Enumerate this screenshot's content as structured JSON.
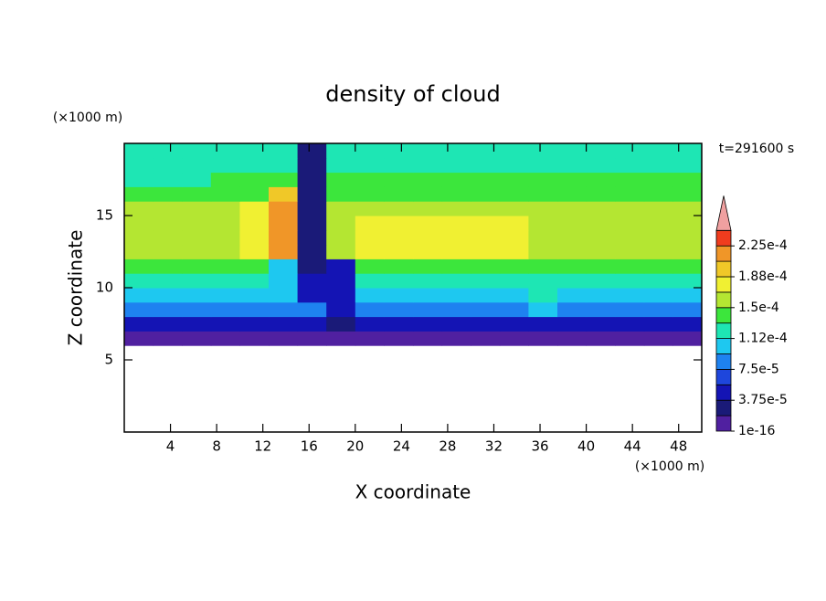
{
  "chart_data": {
    "type": "contour",
    "title": "density of cloud",
    "xlabel": "X coordinate",
    "ylabel": "Z coordinate",
    "x_unit": "(×1000 m)",
    "y_unit": "(×1000 m)",
    "annotation": "t=291600 s",
    "xlim": [
      0,
      50
    ],
    "ylim": [
      0,
      20
    ],
    "xticks": [
      4,
      8,
      12,
      16,
      20,
      24,
      28,
      32,
      36,
      40,
      44,
      48
    ],
    "yticks": [
      5,
      10,
      15
    ],
    "xbins": [
      0,
      2.5,
      5,
      7.5,
      10,
      12.5,
      15,
      17.5,
      20,
      22.5,
      25,
      27.5,
      30,
      32.5,
      35,
      37.5,
      40,
      42.5,
      45,
      47.5,
      50
    ],
    "ybins": [
      6,
      7,
      8,
      9,
      10,
      11,
      12,
      13,
      14,
      15,
      16,
      17,
      18,
      19,
      20
    ],
    "values": [
      [
        1e-05,
        1e-05,
        1e-05,
        1e-05,
        1e-05,
        1e-05,
        1e-05,
        1e-05,
        1e-05,
        1e-05,
        1e-05,
        1e-05,
        1e-05,
        1e-05,
        1e-05,
        1e-05,
        1e-05,
        1e-05,
        1e-05,
        1e-05
      ],
      [
        4e-05,
        4e-05,
        4e-05,
        4e-05,
        4e-05,
        4e-05,
        4e-05,
        3e-05,
        4e-05,
        4e-05,
        4e-05,
        4e-05,
        4e-05,
        4e-05,
        4e-05,
        4e-05,
        4e-05,
        4e-05,
        4e-05,
        4e-05
      ],
      [
        8e-05,
        8e-05,
        8e-05,
        8e-05,
        8e-05,
        8e-05,
        8e-05,
        4e-05,
        8e-05,
        8e-05,
        8e-05,
        8e-05,
        8e-05,
        8e-05,
        0.0001,
        8e-05,
        8e-05,
        8e-05,
        8e-05,
        8e-05
      ],
      [
        0.00011,
        0.00011,
        0.00011,
        0.00011,
        0.00011,
        0.00011,
        5e-05,
        4e-05,
        0.00011,
        0.00011,
        0.00011,
        0.00011,
        0.00011,
        0.00011,
        0.00012,
        0.00011,
        0.00011,
        0.00011,
        0.00011,
        0.00011
      ],
      [
        0.00013,
        0.00013,
        0.00013,
        0.00013,
        0.00013,
        0.0001,
        5e-05,
        4e-05,
        0.00013,
        0.00013,
        0.00013,
        0.00013,
        0.00013,
        0.00013,
        0.00013,
        0.00013,
        0.00013,
        0.00013,
        0.00013,
        0.00013
      ],
      [
        0.00014,
        0.00014,
        0.00014,
        0.00014,
        0.00014,
        0.0001,
        2e-05,
        4e-05,
        0.00014,
        0.00014,
        0.00014,
        0.00014,
        0.00014,
        0.00014,
        0.00014,
        0.00014,
        0.00014,
        0.00014,
        0.00014,
        0.00014
      ],
      [
        0.000155,
        0.000155,
        0.000155,
        0.000155,
        0.00018,
        0.00022,
        2e-05,
        0.000155,
        0.000175,
        0.000175,
        0.000175,
        0.000175,
        0.000175,
        0.000175,
        0.000155,
        0.000155,
        0.000155,
        0.000155,
        0.000155,
        0.000155
      ],
      [
        0.00016,
        0.00016,
        0.00016,
        0.00016,
        0.00018,
        0.00022,
        2e-05,
        0.00016,
        0.000175,
        0.000175,
        0.000175,
        0.000175,
        0.000175,
        0.000175,
        0.00016,
        0.00016,
        0.00016,
        0.00016,
        0.00016,
        0.00016
      ],
      [
        0.000155,
        0.000155,
        0.000155,
        0.000155,
        0.00018,
        0.00022,
        2e-05,
        0.000155,
        0.000175,
        0.000175,
        0.000175,
        0.000175,
        0.000175,
        0.000175,
        0.000155,
        0.000155,
        0.000155,
        0.000155,
        0.000155,
        0.000155
      ],
      [
        0.00015,
        0.00015,
        0.00015,
        0.00015,
        0.00018,
        0.00022,
        2e-05,
        0.00015,
        0.00015,
        0.00015,
        0.00015,
        0.00015,
        0.00015,
        0.00015,
        0.00015,
        0.00015,
        0.00015,
        0.00015,
        0.00015,
        0.00015
      ],
      [
        0.000145,
        0.000145,
        0.000145,
        0.000145,
        0.000145,
        0.00019,
        2e-05,
        0.000145,
        0.000145,
        0.000145,
        0.000145,
        0.000145,
        0.000145,
        0.000145,
        0.000145,
        0.000145,
        0.000145,
        0.000145,
        0.000145,
        0.000145
      ],
      [
        0.00013,
        0.00013,
        0.00013,
        0.00014,
        0.00014,
        0.00014,
        2e-05,
        0.00014,
        0.00014,
        0.00014,
        0.00014,
        0.00014,
        0.00014,
        0.00014,
        0.00014,
        0.00014,
        0.00014,
        0.00014,
        0.00014,
        0.00014
      ],
      [
        0.00013,
        0.00013,
        0.00013,
        0.00013,
        0.00013,
        0.00013,
        2e-05,
        0.00013,
        0.00013,
        0.00013,
        0.00013,
        0.00013,
        0.00013,
        0.00013,
        0.00013,
        0.00013,
        0.00013,
        0.00013,
        0.00013,
        0.00013
      ],
      [
        0.000125,
        0.000125,
        0.000125,
        0.000125,
        0.000125,
        0.000125,
        2e-05,
        0.000125,
        0.000125,
        0.000125,
        0.000125,
        0.000125,
        0.000125,
        0.000125,
        0.000125,
        0.000125,
        0.000125,
        0.000125,
        0.000125,
        0.000125
      ]
    ],
    "levels": [
      1e-16,
      1.875e-05,
      3.75e-05,
      5.625e-05,
      7.5e-05,
      9.375e-05,
      0.0001125,
      0.00013125,
      0.00015,
      0.00016875,
      0.0001875,
      0.00020625,
      0.000225,
      0.00024375
    ],
    "colors": [
      "#5020a0",
      "#1a1a78",
      "#1414b4",
      "#1e46dc",
      "#1e82f0",
      "#1ec8f0",
      "#1ee6b4",
      "#3ce63c",
      "#b4e632",
      "#f0f032",
      "#f0c828",
      "#f09628",
      "#f03c1e"
    ],
    "extend_color": "#f0a0a0",
    "colorbar_ticks": [
      {
        "value": 1e-16,
        "label": "1e-16"
      },
      {
        "value": 3.75e-05,
        "label": "3.75e-5"
      },
      {
        "value": 7.5e-05,
        "label": "7.5e-5"
      },
      {
        "value": 0.0001125,
        "label": "1.12e-4"
      },
      {
        "value": 0.00015,
        "label": "1.5e-4"
      },
      {
        "value": 0.0001875,
        "label": "1.88e-4"
      },
      {
        "value": 0.000225,
        "label": "2.25e-4"
      }
    ]
  }
}
